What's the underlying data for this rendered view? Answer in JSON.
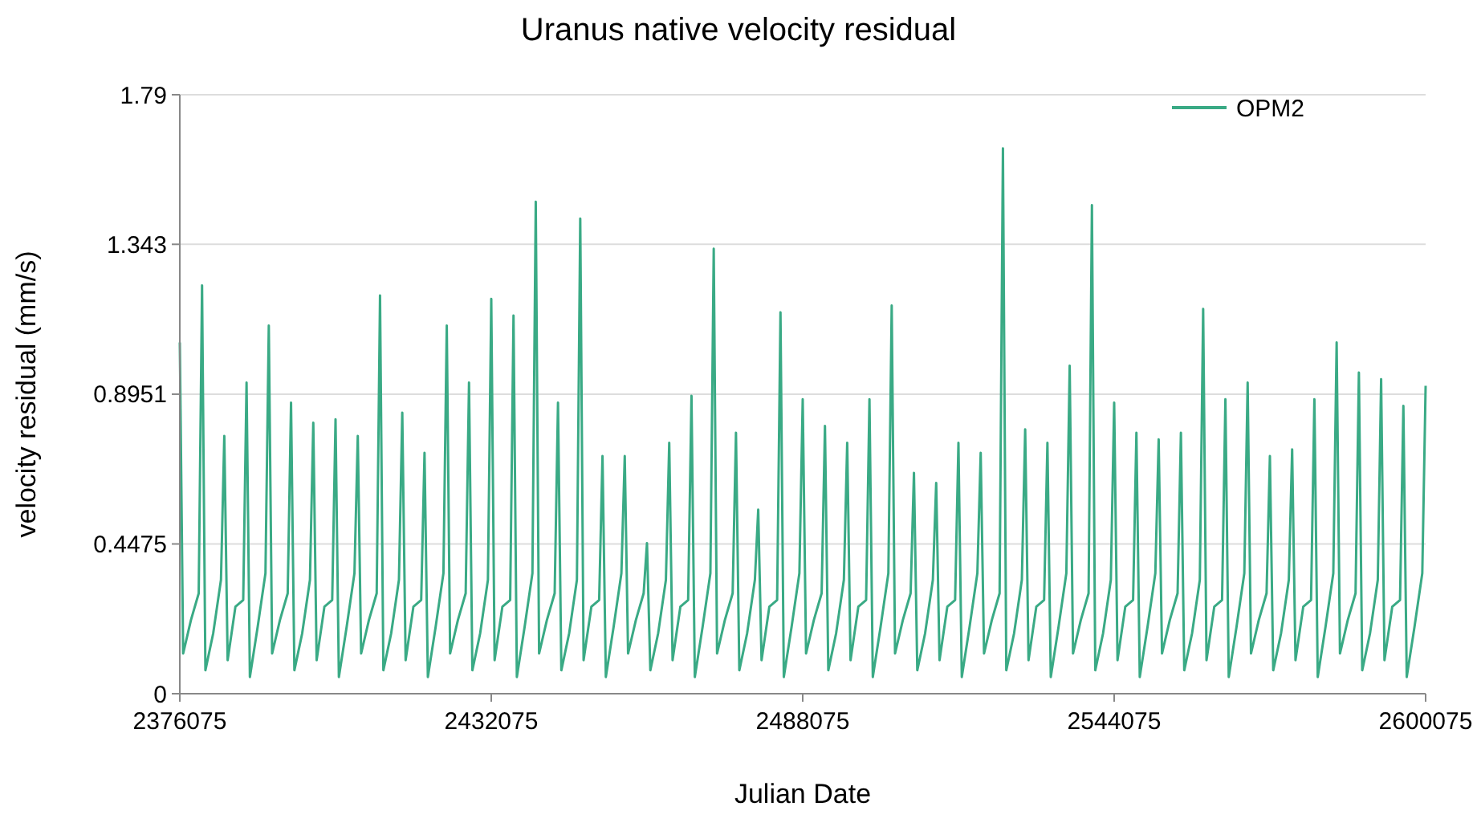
{
  "chart_data": {
    "type": "line",
    "title": "Uranus native velocity residual",
    "xlabel": "Julian Date",
    "ylabel": "velocity residual (mm/s)",
    "xlim": [
      2376075,
      2600075
    ],
    "xticks": [
      2376075,
      2432075,
      2488075,
      2544075,
      2600075
    ],
    "ylim": [
      0,
      1.79
    ],
    "yticks": [
      0,
      0.4475,
      0.8951,
      1.343,
      1.79
    ],
    "grid": "y",
    "legend": "top right",
    "marker": "none",
    "line_style": "solid",
    "x": [
      2376075,
      2376675,
      2378075,
      2379475,
      2380075,
      2380675,
      2382075,
      2383475,
      2384075,
      2384675,
      2386075,
      2387475,
      2388075,
      2388675,
      2390075,
      2391475,
      2392075,
      2392675,
      2394075,
      2395475,
      2396075,
      2396675,
      2398075,
      2399475,
      2400075,
      2400675,
      2402075,
      2403475,
      2404075,
      2404675,
      2406075,
      2407475,
      2408075,
      2408675,
      2410075,
      2411475,
      2412075,
      2412675,
      2414075,
      2415475,
      2416075,
      2416675,
      2418075,
      2419475,
      2420075,
      2420675,
      2422075,
      2423475,
      2424075,
      2424675,
      2426075,
      2427475,
      2428075,
      2428675,
      2430075,
      2431475,
      2432075,
      2432675,
      2434075,
      2435475,
      2436075,
      2436675,
      2438075,
      2439475,
      2440075,
      2440675,
      2442075,
      2443475,
      2444075,
      2444675,
      2446075,
      2447475,
      2448075,
      2448675,
      2450075,
      2451475,
      2452075,
      2452675,
      2454075,
      2455475,
      2456075,
      2456675,
      2458075,
      2459475,
      2460075,
      2460675,
      2462075,
      2463475,
      2464075,
      2464675,
      2466075,
      2467475,
      2468075,
      2468675,
      2470075,
      2471475,
      2472075,
      2472675,
      2474075,
      2475475,
      2476075,
      2476675,
      2478075,
      2479475,
      2480075,
      2480675,
      2482075,
      2483475,
      2484075,
      2484675,
      2486075,
      2487475,
      2488075,
      2488675,
      2490075,
      2491475,
      2492075,
      2492675,
      2494075,
      2495475,
      2496075,
      2496675,
      2498075,
      2499475,
      2500075,
      2500675,
      2502075,
      2503475,
      2504075,
      2504675,
      2506075,
      2507475,
      2508075,
      2508675,
      2510075,
      2511475,
      2512075,
      2512675,
      2514075,
      2515475,
      2516075,
      2516675,
      2518075,
      2519475,
      2520075,
      2520675,
      2522075,
      2523475,
      2524075,
      2524675,
      2526075,
      2527475,
      2528075,
      2528675,
      2530075,
      2531475,
      2532075,
      2532675,
      2534075,
      2535475,
      2536075,
      2536675,
      2538075,
      2539475,
      2540075,
      2540675,
      2542075,
      2543475,
      2544075,
      2544675,
      2546075,
      2547475,
      2548075,
      2548675,
      2550075,
      2551475,
      2552075,
      2552675,
      2554075,
      2555475,
      2556075,
      2556675,
      2558075,
      2559475,
      2560075,
      2560675,
      2562075,
      2563475,
      2564075,
      2564675,
      2566075,
      2567475,
      2568075,
      2568675,
      2570075,
      2571475,
      2572075,
      2572675,
      2574075,
      2575475,
      2576075,
      2576675,
      2578075,
      2579475,
      2580075,
      2580675,
      2582075,
      2583475,
      2584075,
      2584675,
      2586075,
      2587475,
      2588075,
      2588675,
      2590075,
      2591475,
      2592075,
      2592675,
      2594075,
      2595475,
      2596075,
      2596675,
      2598075,
      2599475,
      2600075
    ],
    "series": [
      {
        "name": "OPM2",
        "color": "#3aaa85",
        "values": [
          1.05,
          0.12,
          0.22,
          0.3,
          1.22,
          0.07,
          0.18,
          0.34,
          0.77,
          0.1,
          0.26,
          0.28,
          0.93,
          0.05,
          0.2,
          0.36,
          1.1,
          0.12,
          0.22,
          0.3,
          0.87,
          0.07,
          0.18,
          0.34,
          0.81,
          0.1,
          0.26,
          0.28,
          0.82,
          0.05,
          0.2,
          0.36,
          0.77,
          0.12,
          0.22,
          0.3,
          1.19,
          0.07,
          0.18,
          0.34,
          0.84,
          0.1,
          0.26,
          0.28,
          0.72,
          0.05,
          0.2,
          0.36,
          1.1,
          0.12,
          0.22,
          0.3,
          0.93,
          0.07,
          0.18,
          0.34,
          1.18,
          0.1,
          0.26,
          0.28,
          1.13,
          0.05,
          0.2,
          0.36,
          1.47,
          0.12,
          0.22,
          0.3,
          0.87,
          0.07,
          0.18,
          0.34,
          1.42,
          0.1,
          0.26,
          0.28,
          0.71,
          0.05,
          0.2,
          0.36,
          0.71,
          0.12,
          0.22,
          0.3,
          0.45,
          0.07,
          0.18,
          0.34,
          0.75,
          0.1,
          0.26,
          0.28,
          0.89,
          0.05,
          0.2,
          0.36,
          1.33,
          0.12,
          0.22,
          0.3,
          0.78,
          0.07,
          0.18,
          0.34,
          0.55,
          0.1,
          0.26,
          0.28,
          1.14,
          0.05,
          0.2,
          0.36,
          0.88,
          0.12,
          0.22,
          0.3,
          0.8,
          0.07,
          0.18,
          0.34,
          0.75,
          0.1,
          0.26,
          0.28,
          0.88,
          0.05,
          0.2,
          0.36,
          1.16,
          0.12,
          0.22,
          0.3,
          0.66,
          0.07,
          0.18,
          0.34,
          0.63,
          0.1,
          0.26,
          0.28,
          0.75,
          0.05,
          0.2,
          0.36,
          0.72,
          0.12,
          0.22,
          0.3,
          1.63,
          0.07,
          0.18,
          0.34,
          0.79,
          0.1,
          0.26,
          0.28,
          0.75,
          0.05,
          0.2,
          0.36,
          0.98,
          0.12,
          0.22,
          0.3,
          1.46,
          0.07,
          0.18,
          0.34,
          0.87,
          0.1,
          0.26,
          0.28,
          0.78,
          0.05,
          0.2,
          0.36,
          0.76,
          0.12,
          0.22,
          0.3,
          0.78,
          0.07,
          0.18,
          0.34,
          1.15,
          0.1,
          0.26,
          0.28,
          0.88,
          0.05,
          0.2,
          0.36,
          0.93,
          0.12,
          0.22,
          0.3,
          0.71,
          0.07,
          0.18,
          0.34,
          0.73,
          0.1,
          0.26,
          0.28,
          0.88,
          0.05,
          0.2,
          0.36,
          1.05,
          0.12,
          0.22,
          0.3,
          0.96,
          0.07,
          0.18,
          0.34,
          0.94,
          0.1,
          0.26,
          0.28,
          0.86,
          0.05,
          0.2,
          0.36,
          0.92
        ]
      }
    ]
  }
}
